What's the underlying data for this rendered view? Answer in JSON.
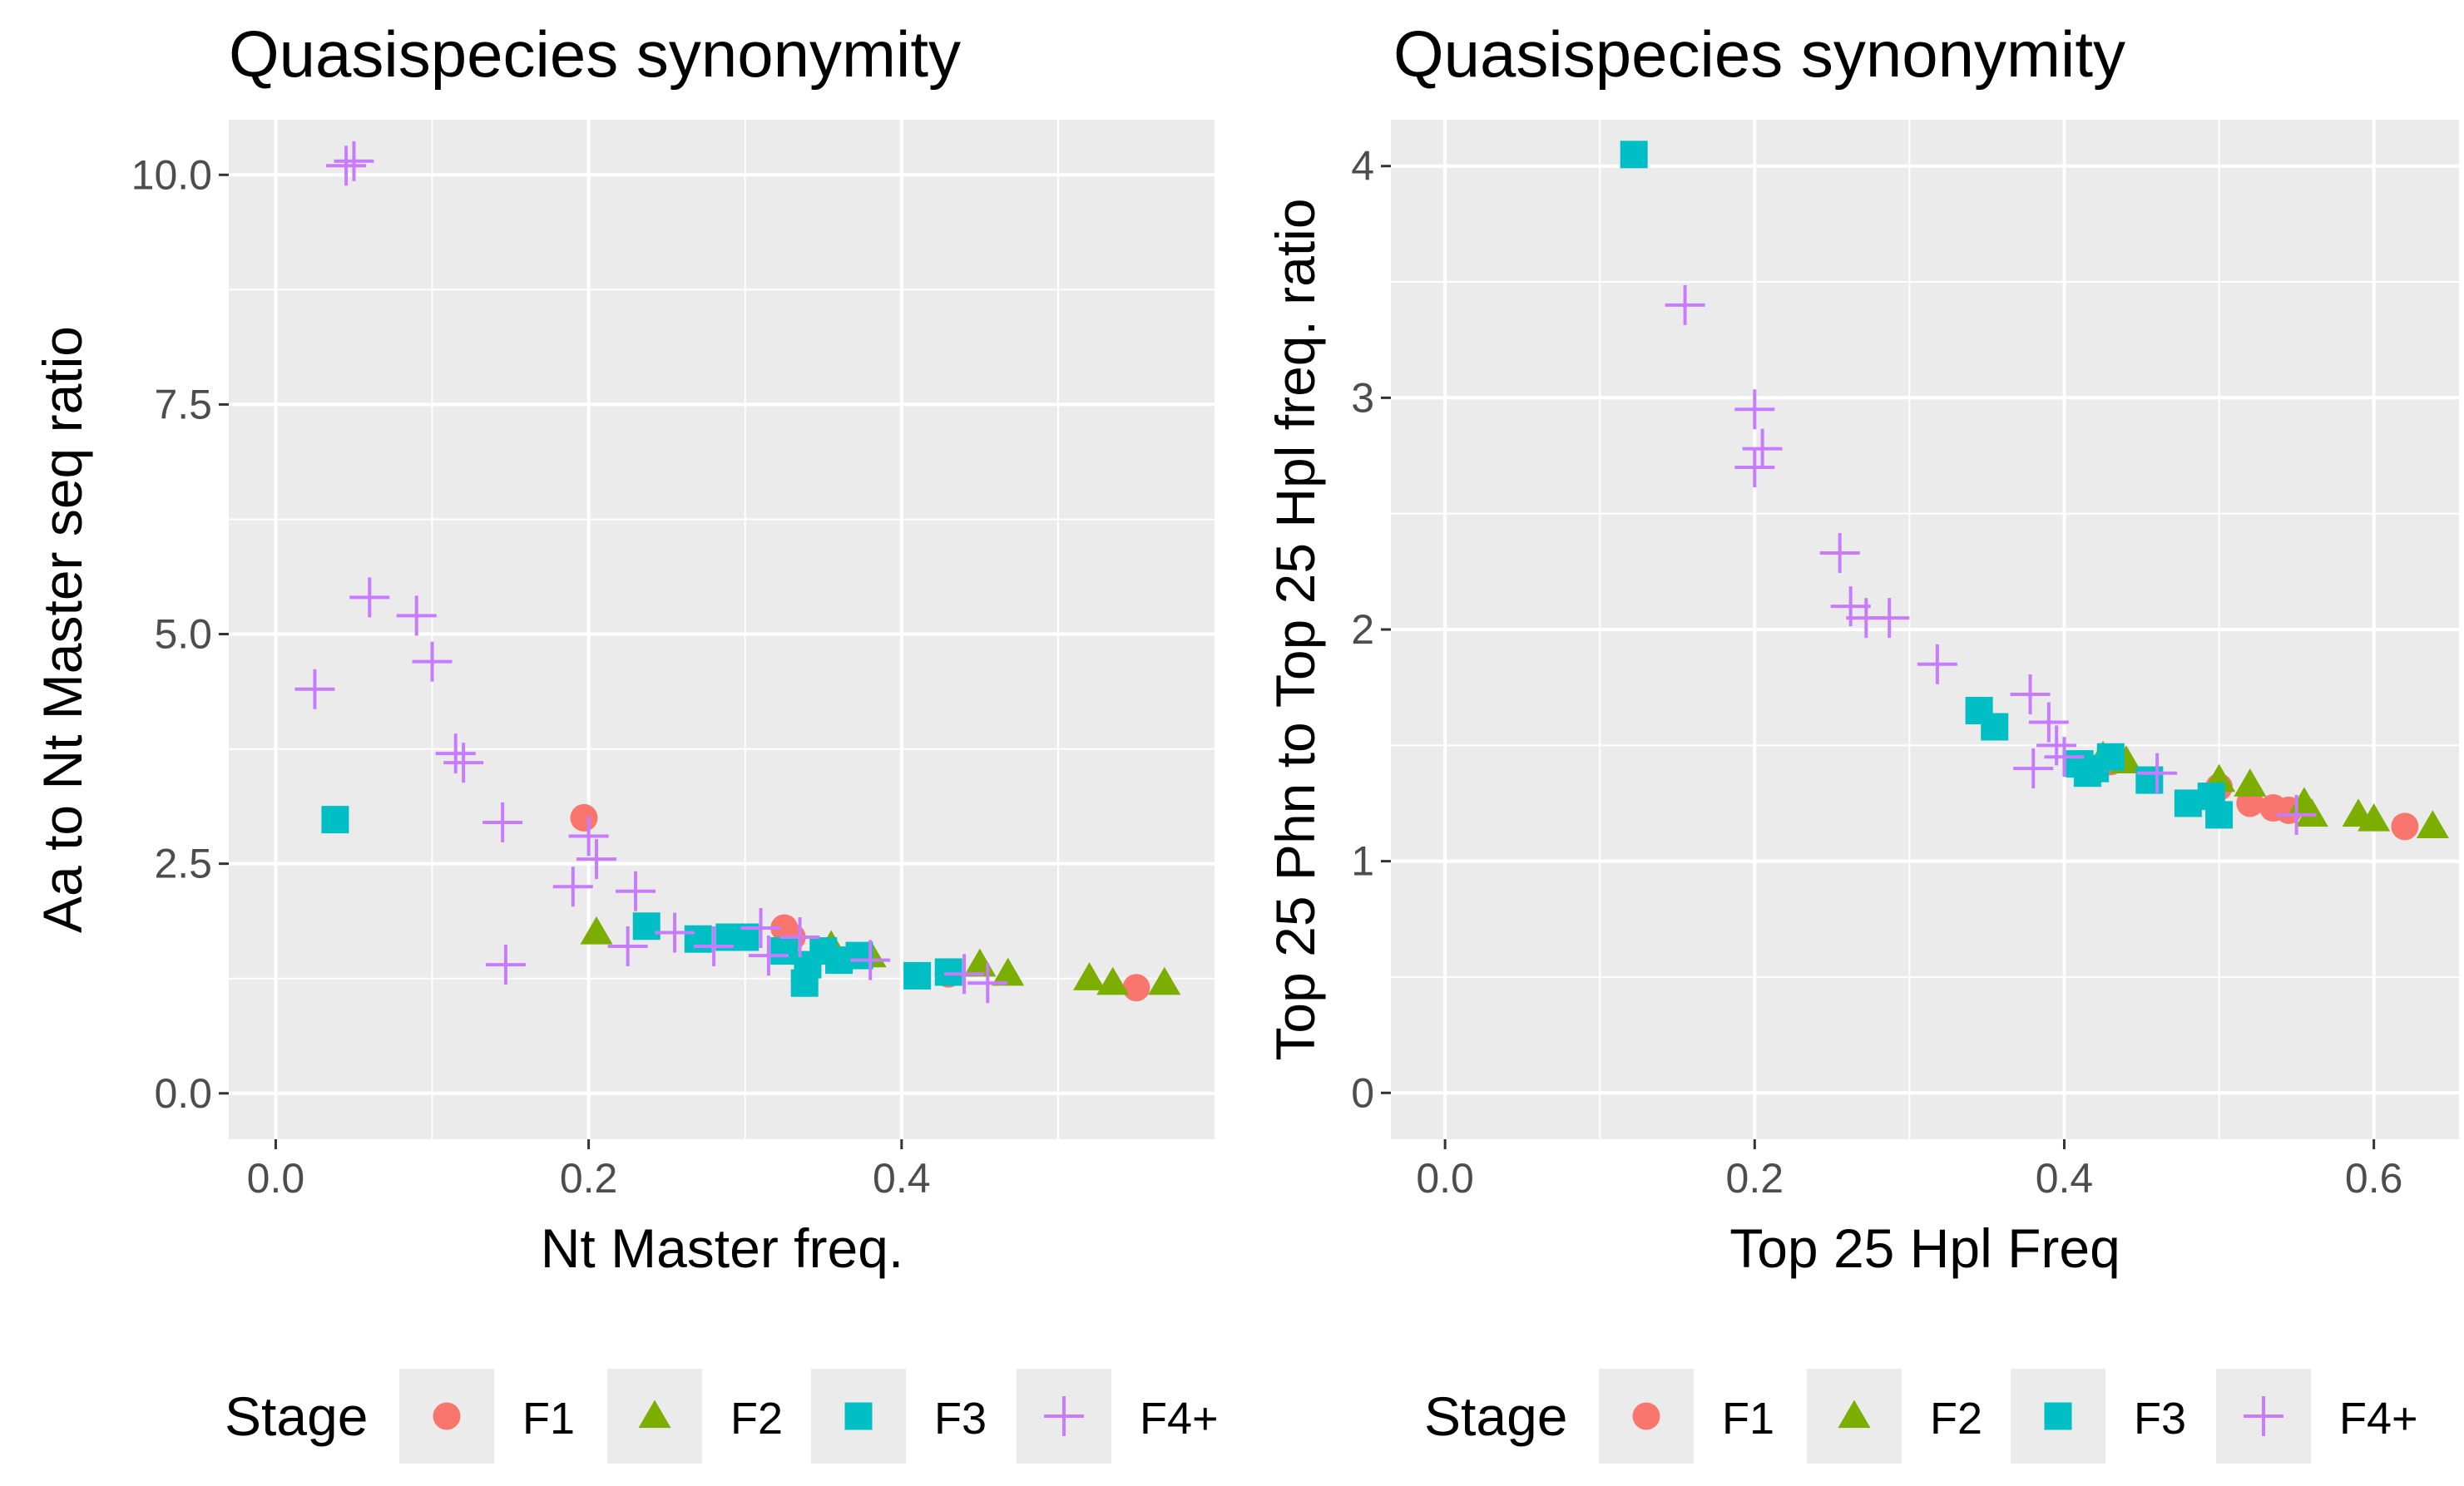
{
  "colors": {
    "F1": "#F8766D",
    "F2": "#7CAE00",
    "F3": "#00BFC4",
    "F4+": "#C77CFF",
    "panel_bg": "#EBEBEB",
    "grid": "#FFFFFF",
    "tick_text": "#4D4D4D"
  },
  "legend": {
    "title": "Stage",
    "entries": [
      {
        "label": "F1",
        "shape": "circle"
      },
      {
        "label": "F2",
        "shape": "triangle"
      },
      {
        "label": "F3",
        "shape": "square"
      },
      {
        "label": "F4+",
        "shape": "plus"
      }
    ]
  },
  "chart_data": [
    {
      "type": "scatter",
      "title": "Quasispecies synonymity",
      "xlabel": "Nt Master freq.",
      "ylabel": "Aa to Nt Master seq ratio",
      "xlim": [
        -0.03,
        0.6
      ],
      "ylim": [
        -0.5,
        10.6
      ],
      "xticks": [
        0.0,
        0.2,
        0.4
      ],
      "xtick_labels": [
        "0.0",
        "0.2",
        "0.4"
      ],
      "yticks": [
        0.0,
        2.5,
        5.0,
        7.5,
        10.0
      ],
      "ytick_labels": [
        "0.0",
        "2.5",
        "5.0",
        "7.5",
        "10.0"
      ],
      "series": [
        {
          "name": "F1",
          "points": [
            [
              0.197,
              3.0
            ],
            [
              0.325,
              1.8
            ],
            [
              0.33,
              1.7
            ],
            [
              0.43,
              1.3
            ],
            [
              0.55,
              1.15
            ]
          ]
        },
        {
          "name": "F2",
          "points": [
            [
              0.205,
              1.75
            ],
            [
              0.355,
              1.6
            ],
            [
              0.38,
              1.5
            ],
            [
              0.45,
              1.4
            ],
            [
              0.468,
              1.3
            ],
            [
              0.52,
              1.25
            ],
            [
              0.535,
              1.2
            ],
            [
              0.568,
              1.2
            ]
          ]
        },
        {
          "name": "F3",
          "points": [
            [
              0.038,
              2.98
            ],
            [
              0.237,
              1.82
            ],
            [
              0.27,
              1.68
            ],
            [
              0.29,
              1.7
            ],
            [
              0.3,
              1.7
            ],
            [
              0.325,
              1.55
            ],
            [
              0.338,
              1.2
            ],
            [
              0.34,
              1.4
            ],
            [
              0.35,
              1.55
            ],
            [
              0.36,
              1.45
            ],
            [
              0.373,
              1.5
            ],
            [
              0.41,
              1.28
            ],
            [
              0.43,
              1.32
            ]
          ]
        },
        {
          "name": "F4+",
          "points": [
            [
              0.045,
              10.1
            ],
            [
              0.05,
              10.15
            ],
            [
              0.025,
              4.4
            ],
            [
              0.06,
              5.4
            ],
            [
              0.09,
              5.2
            ],
            [
              0.1,
              4.7
            ],
            [
              0.115,
              3.7
            ],
            [
              0.12,
              3.6
            ],
            [
              0.145,
              2.95
            ],
            [
              0.147,
              1.4
            ],
            [
              0.19,
              2.25
            ],
            [
              0.2,
              2.8
            ],
            [
              0.205,
              2.55
            ],
            [
              0.23,
              2.2
            ],
            [
              0.225,
              1.6
            ],
            [
              0.255,
              1.75
            ],
            [
              0.28,
              1.6
            ],
            [
              0.31,
              1.8
            ],
            [
              0.315,
              1.5
            ],
            [
              0.335,
              1.7
            ],
            [
              0.38,
              1.45
            ],
            [
              0.44,
              1.3
            ],
            [
              0.455,
              1.2
            ]
          ]
        }
      ]
    },
    {
      "type": "scatter",
      "title": "Quasispecies synonymity",
      "xlabel": "Top 25 Hpl Freq",
      "ylabel": "Top 25 Phn to Top 25 Hpl freq. ratio",
      "xlim": [
        -0.035,
        0.655
      ],
      "ylim": [
        -0.2,
        4.2
      ],
      "xticks": [
        0.0,
        0.2,
        0.4,
        0.6
      ],
      "xtick_labels": [
        "0.0",
        "0.2",
        "0.4",
        "0.6"
      ],
      "yticks": [
        0,
        1,
        2,
        3,
        4
      ],
      "ytick_labels": [
        "0",
        "1",
        "2",
        "3",
        "4"
      ],
      "series": [
        {
          "name": "F1",
          "points": [
            [
              0.43,
              1.43
            ],
            [
              0.5,
              1.32
            ],
            [
              0.52,
              1.25
            ],
            [
              0.535,
              1.23
            ],
            [
              0.545,
              1.22
            ],
            [
              0.62,
              1.15
            ]
          ]
        },
        {
          "name": "F2",
          "points": [
            [
              0.425,
              1.45
            ],
            [
              0.44,
              1.43
            ],
            [
              0.5,
              1.35
            ],
            [
              0.52,
              1.33
            ],
            [
              0.555,
              1.25
            ],
            [
              0.56,
              1.2
            ],
            [
              0.59,
              1.2
            ],
            [
              0.6,
              1.18
            ],
            [
              0.638,
              1.15
            ]
          ]
        },
        {
          "name": "F3",
          "points": [
            [
              0.122,
              4.05
            ],
            [
              0.345,
              1.65
            ],
            [
              0.355,
              1.58
            ],
            [
              0.41,
              1.42
            ],
            [
              0.415,
              1.38
            ],
            [
              0.42,
              1.4
            ],
            [
              0.43,
              1.45
            ],
            [
              0.455,
              1.35
            ],
            [
              0.48,
              1.25
            ],
            [
              0.495,
              1.28
            ],
            [
              0.5,
              1.2
            ]
          ]
        },
        {
          "name": "F4+",
          "points": [
            [
              0.155,
              3.4
            ],
            [
              0.2,
              2.95
            ],
            [
              0.2,
              2.7
            ],
            [
              0.205,
              2.78
            ],
            [
              0.255,
              2.33
            ],
            [
              0.262,
              2.1
            ],
            [
              0.272,
              2.05
            ],
            [
              0.287,
              2.05
            ],
            [
              0.318,
              1.85
            ],
            [
              0.378,
              1.72
            ],
            [
              0.38,
              1.4
            ],
            [
              0.39,
              1.6
            ],
            [
              0.395,
              1.5
            ],
            [
              0.4,
              1.45
            ],
            [
              0.46,
              1.38
            ],
            [
              0.55,
              1.2
            ]
          ]
        }
      ]
    }
  ]
}
